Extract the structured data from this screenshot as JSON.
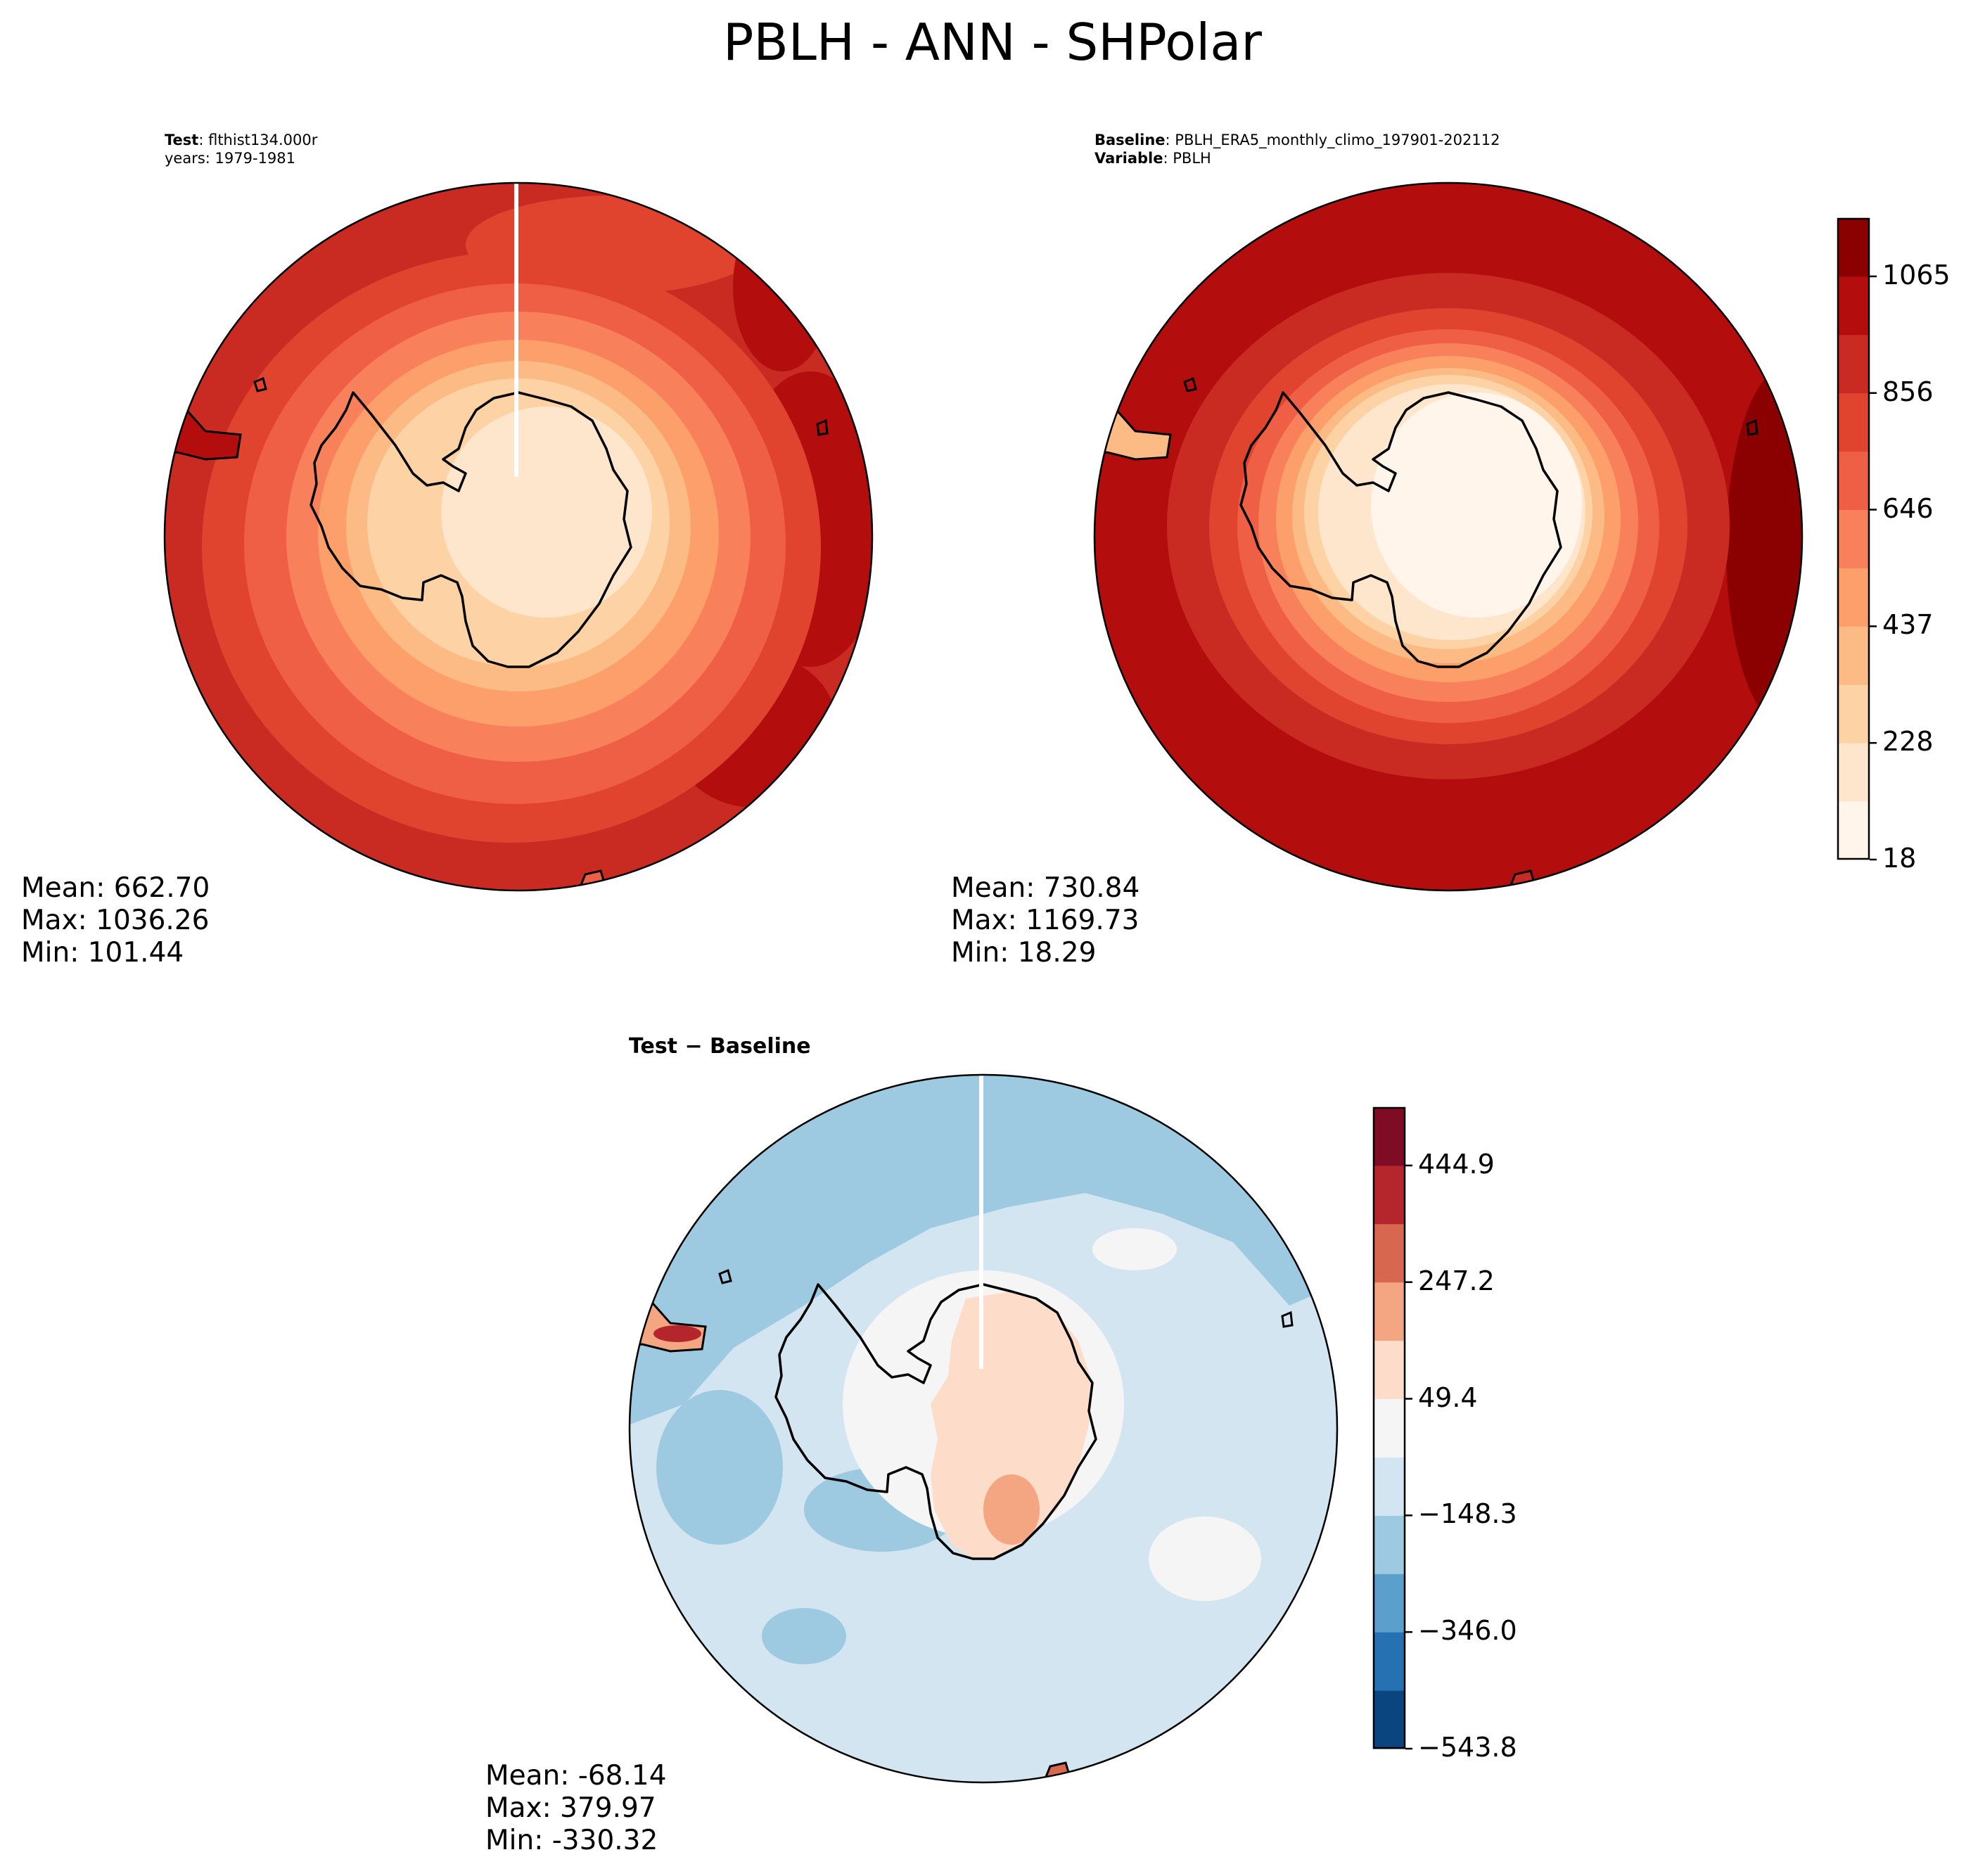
{
  "figure_title": "PBLH - ANN - SHPolar",
  "colors": {
    "seq": [
      "#fff5eb",
      "#fde6cc",
      "#fdd2a4",
      "#fcbb84",
      "#fc9f6a",
      "#f8805a",
      "#ef5f45",
      "#e0442f",
      "#c92a22",
      "#b30d0d",
      "#8b0000"
    ],
    "div": [
      "#0b4580",
      "#2571b2",
      "#5b9fcd",
      "#9ecae1",
      "#d2e5f1",
      "#f5f5f5",
      "#fddcc9",
      "#f4a682",
      "#d7674f",
      "#b5262c",
      "#7e0c24"
    ],
    "coast": "#000000"
  },
  "chart_data": [
    {
      "type": "polar_contour_map",
      "panel": "test",
      "annotation": {
        "label": "Test",
        "value": "flthist134.000r",
        "line2": "years: 1979-1981"
      },
      "stats": {
        "mean": "Mean: 662.70",
        "max": "Max: 1036.26",
        "min": "Min: 101.44"
      },
      "region": "SHPolar",
      "variable": "PBLH"
    },
    {
      "type": "polar_contour_map",
      "panel": "baseline",
      "annotation": {
        "label": "Baseline",
        "value": "PBLH_ERA5_monthly_climo_197901-202112",
        "label2": "Variable",
        "value2": "PBLH"
      },
      "stats": {
        "mean": "Mean: 730.84",
        "max": "Max: 1169.73",
        "min": "Min: 18.29"
      },
      "colorbar": {
        "ticks": [
          "18",
          "228",
          "437",
          "646",
          "856",
          "1065"
        ],
        "levels": 11
      }
    },
    {
      "type": "polar_contour_map",
      "panel": "difference",
      "title": "Test − Baseline",
      "stats": {
        "mean": "Mean: -68.14",
        "max": "Max: 379.97",
        "min": "Min: -330.32"
      },
      "colorbar": {
        "ticks": [
          "−543.8",
          "−346.0",
          "−148.3",
          "49.4",
          "247.2",
          "444.9"
        ],
        "levels": 11
      }
    }
  ]
}
